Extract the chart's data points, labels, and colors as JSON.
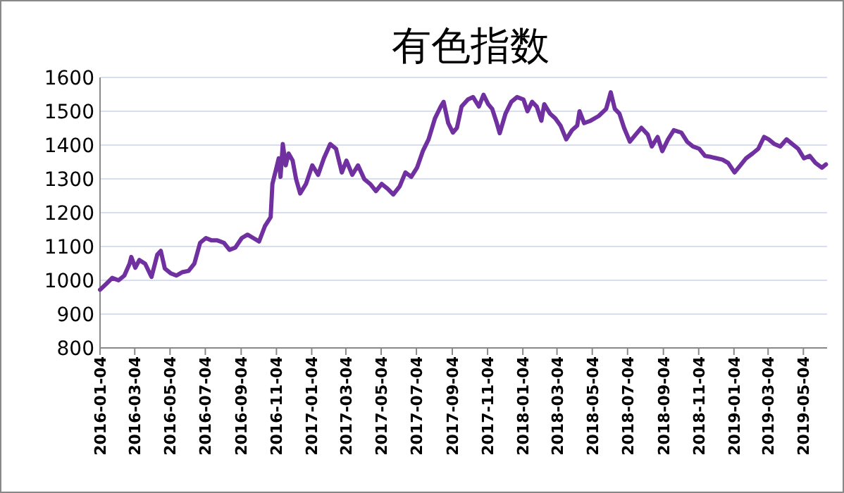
{
  "chart_data": {
    "type": "line",
    "title": "有色指数",
    "color": "#7030a0",
    "grid": "y",
    "xlim": [
      "2016-01-04",
      "2019-06-14"
    ],
    "ylim": [
      800,
      1600
    ],
    "yticks": [
      800,
      900,
      1000,
      1100,
      1200,
      1300,
      1400,
      1500,
      1600
    ],
    "xticks": [
      "2016-01-04",
      "2016-03-04",
      "2016-05-04",
      "2016-07-04",
      "2016-09-04",
      "2016-11-04",
      "2017-01-04",
      "2017-03-04",
      "2017-05-04",
      "2017-07-04",
      "2017-09-04",
      "2017-11-04",
      "2018-01-04",
      "2018-03-04",
      "2018-05-04",
      "2018-07-04",
      "2018-09-04",
      "2018-11-04",
      "2019-01-04",
      "2019-03-04",
      "2019-05-04"
    ],
    "x": [
      "2016-01-04",
      "2016-01-15",
      "2016-01-25",
      "2016-02-05",
      "2016-02-15",
      "2016-02-24",
      "2016-02-27",
      "2016-03-05",
      "2016-03-12",
      "2016-03-22",
      "2016-04-02",
      "2016-04-12",
      "2016-04-18",
      "2016-04-25",
      "2016-05-05",
      "2016-05-15",
      "2016-05-25",
      "2016-06-05",
      "2016-06-15",
      "2016-06-25",
      "2016-07-05",
      "2016-07-15",
      "2016-07-25",
      "2016-08-05",
      "2016-08-15",
      "2016-08-25",
      "2016-09-05",
      "2016-09-15",
      "2016-09-25",
      "2016-10-05",
      "2016-10-15",
      "2016-10-25",
      "2016-10-28",
      "2016-11-03",
      "2016-11-08",
      "2016-11-11",
      "2016-11-15",
      "2016-11-20",
      "2016-11-25",
      "2016-12-02",
      "2016-12-08",
      "2016-12-15",
      "2016-12-25",
      "2017-01-05",
      "2017-01-15",
      "2017-01-25",
      "2017-02-05",
      "2017-02-15",
      "2017-02-25",
      "2017-03-05",
      "2017-03-15",
      "2017-03-25",
      "2017-04-05",
      "2017-04-15",
      "2017-04-25",
      "2017-05-05",
      "2017-05-15",
      "2017-05-25",
      "2017-06-05",
      "2017-06-15",
      "2017-06-25",
      "2017-07-05",
      "2017-07-15",
      "2017-07-25",
      "2017-08-05",
      "2017-08-15",
      "2017-08-20",
      "2017-08-28",
      "2017-09-05",
      "2017-09-12",
      "2017-09-20",
      "2017-10-01",
      "2017-10-10",
      "2017-10-20",
      "2017-10-28",
      "2017-11-05",
      "2017-11-12",
      "2017-11-20",
      "2017-11-25",
      "2017-12-05",
      "2017-12-15",
      "2017-12-25",
      "2018-01-05",
      "2018-01-12",
      "2018-01-20",
      "2018-01-28",
      "2018-02-05",
      "2018-02-10",
      "2018-02-20",
      "2018-03-01",
      "2018-03-10",
      "2018-03-20",
      "2018-03-30",
      "2018-04-08",
      "2018-04-12",
      "2018-04-20",
      "2018-05-01",
      "2018-05-15",
      "2018-05-28",
      "2018-06-05",
      "2018-06-12",
      "2018-06-20",
      "2018-06-28",
      "2018-07-08",
      "2018-07-18",
      "2018-07-28",
      "2018-08-08",
      "2018-08-15",
      "2018-08-25",
      "2018-09-02",
      "2018-09-12",
      "2018-09-22",
      "2018-10-05",
      "2018-10-15",
      "2018-10-25",
      "2018-11-05",
      "2018-11-15",
      "2018-11-25",
      "2018-12-05",
      "2018-12-15",
      "2018-12-25",
      "2019-01-05",
      "2019-01-15",
      "2019-01-25",
      "2019-02-05",
      "2019-02-15",
      "2019-02-25",
      "2019-03-05",
      "2019-03-15",
      "2019-03-25",
      "2019-04-05",
      "2019-04-15",
      "2019-04-25",
      "2019-05-05",
      "2019-05-15",
      "2019-05-25",
      "2019-06-05",
      "2019-06-12"
    ],
    "values": [
      972,
      990,
      1007,
      1000,
      1014,
      1049,
      1069,
      1037,
      1060,
      1049,
      1010,
      1076,
      1087,
      1035,
      1021,
      1014,
      1024,
      1028,
      1049,
      1111,
      1125,
      1118,
      1118,
      1111,
      1090,
      1097,
      1125,
      1135,
      1125,
      1115,
      1160,
      1187,
      1285,
      1326,
      1361,
      1306,
      1403,
      1340,
      1375,
      1354,
      1299,
      1257,
      1285,
      1340,
      1312,
      1361,
      1403,
      1389,
      1319,
      1354,
      1312,
      1340,
      1299,
      1285,
      1264,
      1285,
      1271,
      1254,
      1278,
      1319,
      1306,
      1333,
      1382,
      1417,
      1479,
      1514,
      1528,
      1465,
      1437,
      1451,
      1514,
      1535,
      1542,
      1514,
      1549,
      1521,
      1507,
      1465,
      1435,
      1493,
      1528,
      1542,
      1535,
      1500,
      1528,
      1514,
      1472,
      1521,
      1493,
      1479,
      1458,
      1417,
      1444,
      1458,
      1500,
      1465,
      1472,
      1486,
      1507,
      1556,
      1507,
      1493,
      1451,
      1410,
      1431,
      1451,
      1431,
      1396,
      1424,
      1382,
      1417,
      1444,
      1437,
      1410,
      1396,
      1389,
      1368,
      1365,
      1361,
      1357,
      1347,
      1319,
      1340,
      1361,
      1375,
      1389,
      1424,
      1417,
      1403,
      1396,
      1417,
      1403,
      1389,
      1361,
      1368,
      1347,
      1333,
      1343
    ]
  }
}
